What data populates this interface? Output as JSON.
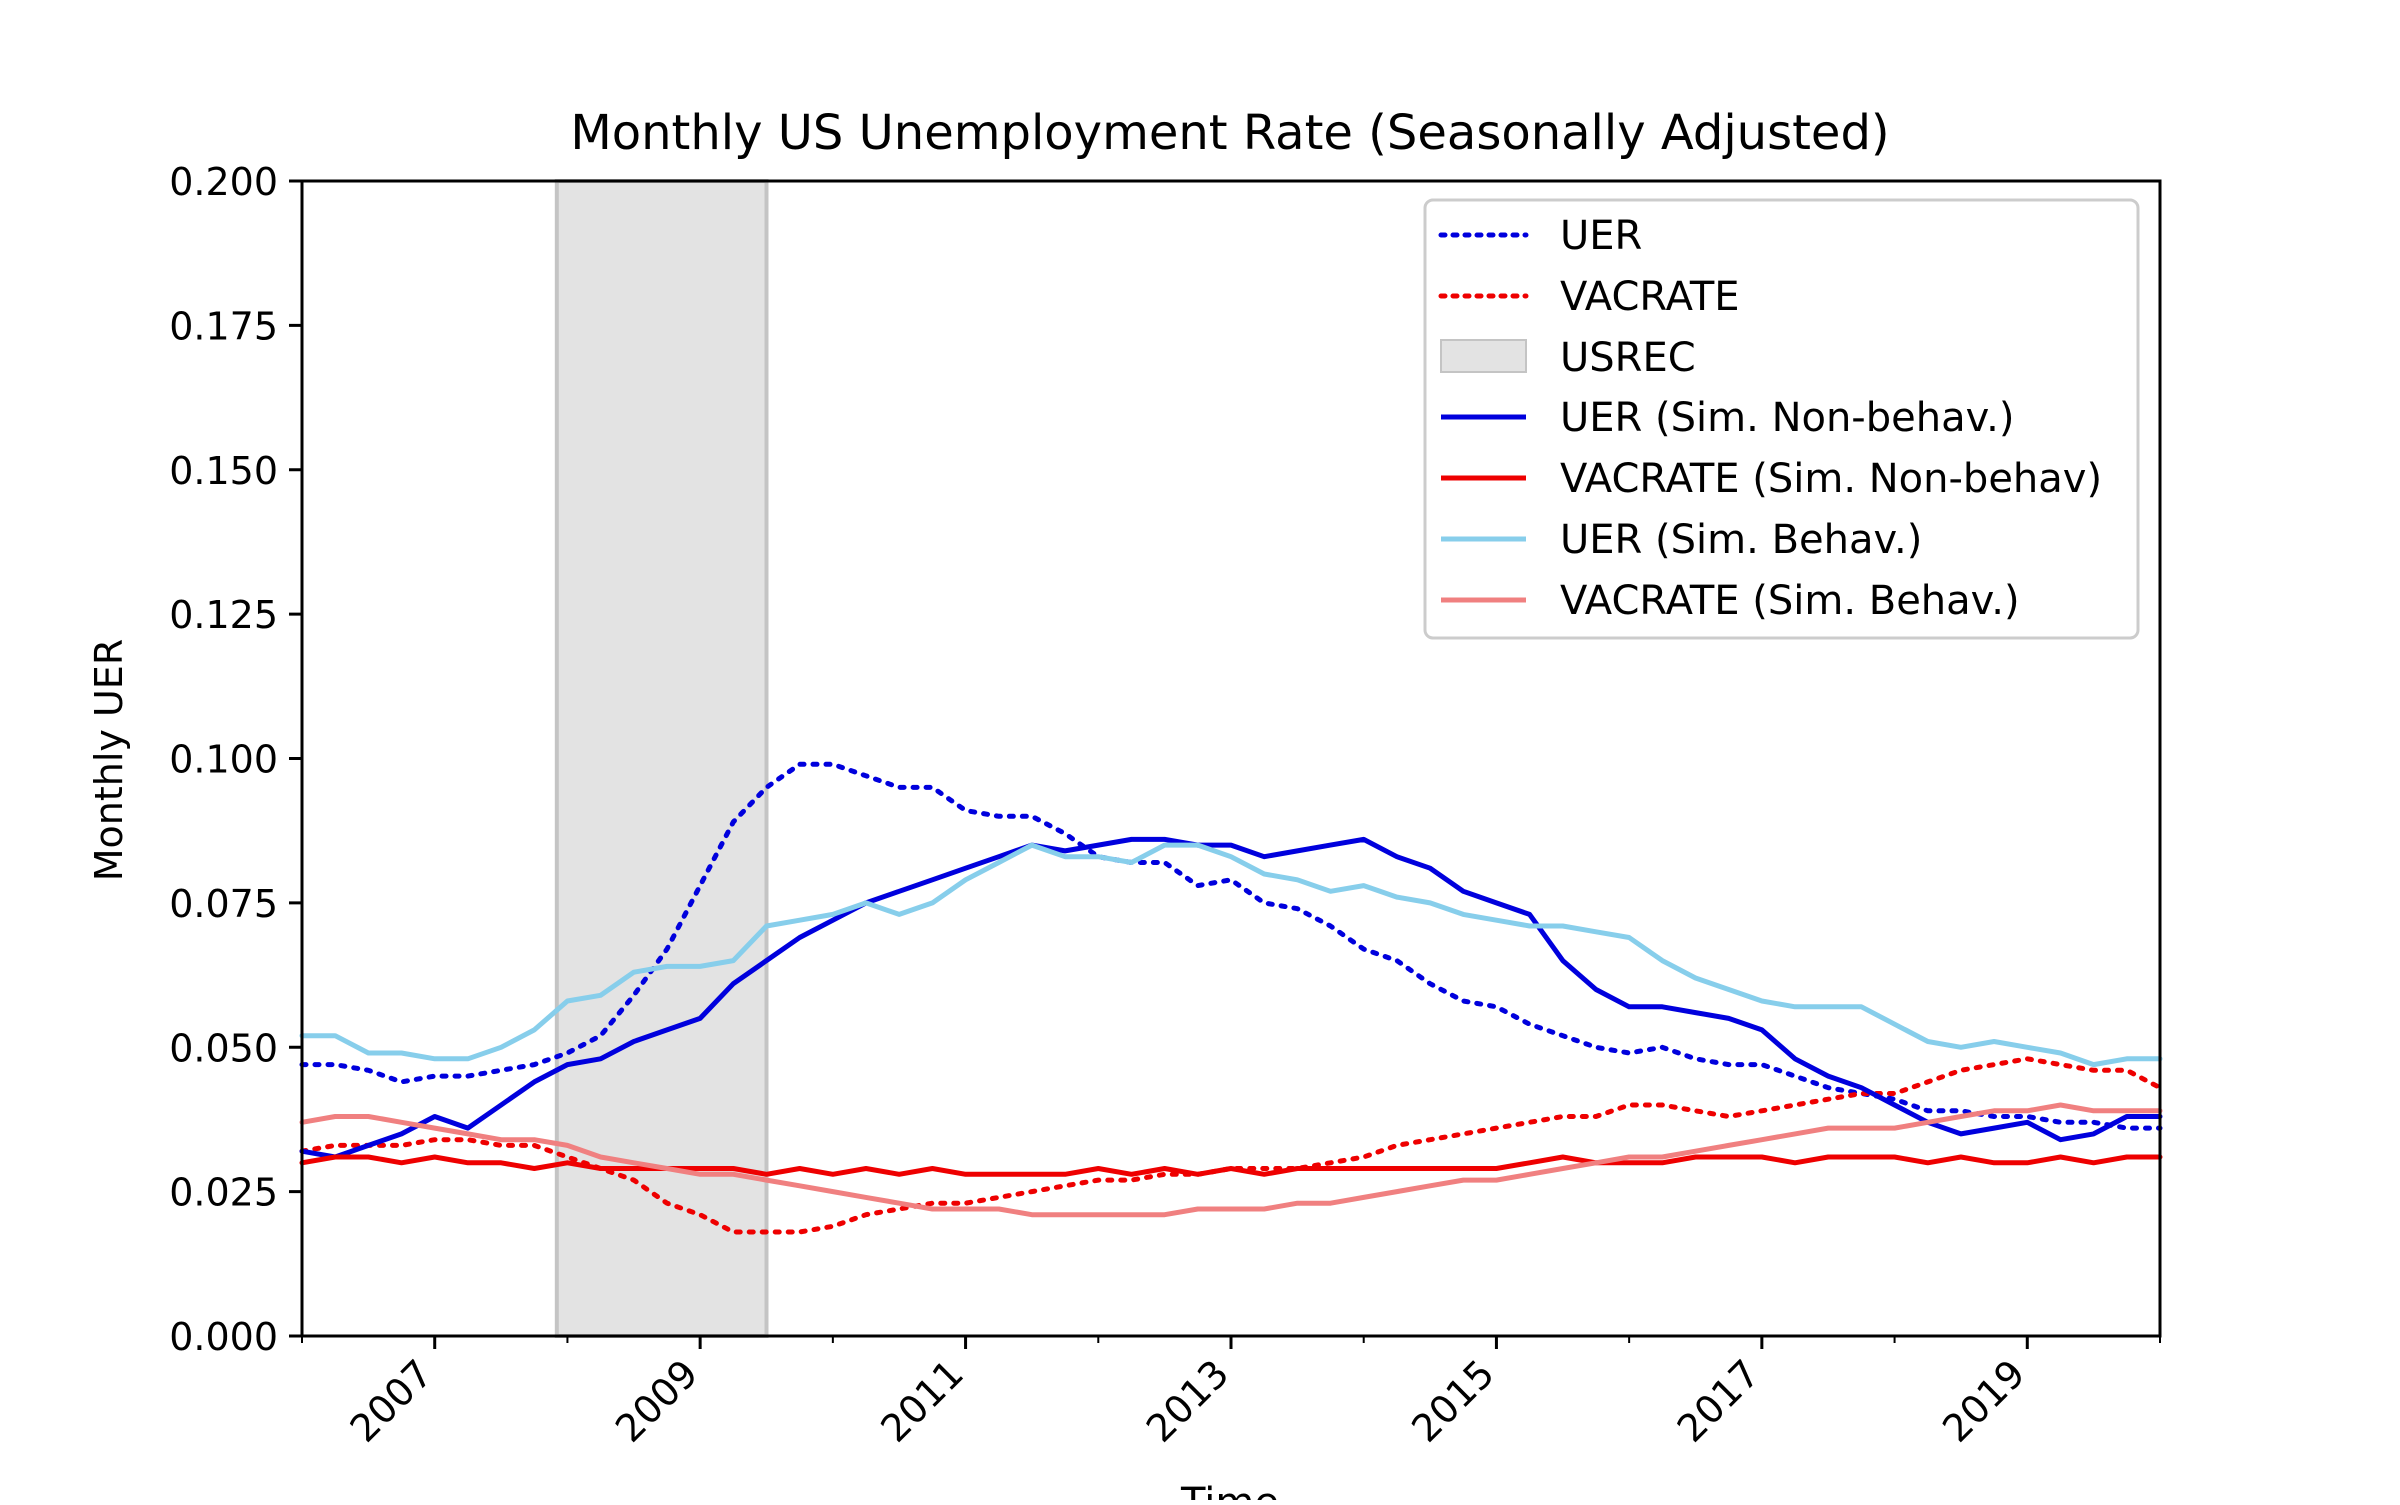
{
  "chart_data": {
    "type": "line",
    "title": "Monthly US Unemployment Rate (Seasonally Adjusted)",
    "xlabel": "Time",
    "ylabel": "Monthly UER",
    "xlim": [
      2006.0,
      2020.0
    ],
    "ylim": [
      0.0,
      0.2
    ],
    "yticks": [
      {
        "value": 0.0,
        "label": "0.000"
      },
      {
        "value": 0.025,
        "label": "0.025"
      },
      {
        "value": 0.05,
        "label": "0.050"
      },
      {
        "value": 0.075,
        "label": "0.075"
      },
      {
        "value": 0.1,
        "label": "0.100"
      },
      {
        "value": 0.125,
        "label": "0.125"
      },
      {
        "value": 0.15,
        "label": "0.150"
      },
      {
        "value": 0.175,
        "label": "0.175"
      },
      {
        "value": 0.2,
        "label": "0.200"
      }
    ],
    "xticks": [
      {
        "value": 2007,
        "label": "2007"
      },
      {
        "value": 2009,
        "label": "2009"
      },
      {
        "value": 2011,
        "label": "2011"
      },
      {
        "value": 2013,
        "label": "2013"
      },
      {
        "value": 2015,
        "label": "2015"
      },
      {
        "value": 2017,
        "label": "2017"
      },
      {
        "value": 2019,
        "label": "2019"
      }
    ],
    "minor_xticks": [
      2006,
      2008,
      2010,
      2012,
      2014,
      2016,
      2018,
      2020
    ],
    "grid": false,
    "legend_position": "top-right",
    "recession_band": {
      "name": "USREC",
      "start": 2007.92,
      "end": 2009.5,
      "color": "#e3e3e3",
      "edge_color": "#c4c4c4"
    },
    "series": [
      {
        "name": "UER",
        "style": "dotted",
        "color": "#0000dd",
        "x": [
          2006.0,
          2006.25,
          2006.5,
          2006.75,
          2007.0,
          2007.25,
          2007.5,
          2007.75,
          2008.0,
          2008.25,
          2008.5,
          2008.75,
          2009.0,
          2009.25,
          2009.5,
          2009.75,
          2010.0,
          2010.25,
          2010.5,
          2010.75,
          2011.0,
          2011.25,
          2011.5,
          2011.75,
          2012.0,
          2012.25,
          2012.5,
          2012.75,
          2013.0,
          2013.25,
          2013.5,
          2013.75,
          2014.0,
          2014.25,
          2014.5,
          2014.75,
          2015.0,
          2015.25,
          2015.5,
          2015.75,
          2016.0,
          2016.25,
          2016.5,
          2016.75,
          2017.0,
          2017.25,
          2017.5,
          2017.75,
          2018.0,
          2018.25,
          2018.5,
          2018.75,
          2019.0,
          2019.25,
          2019.5,
          2019.75,
          2020.0
        ],
        "y": [
          0.047,
          0.047,
          0.046,
          0.044,
          0.045,
          0.045,
          0.046,
          0.047,
          0.049,
          0.052,
          0.059,
          0.067,
          0.078,
          0.089,
          0.095,
          0.099,
          0.099,
          0.097,
          0.095,
          0.095,
          0.091,
          0.09,
          0.09,
          0.087,
          0.083,
          0.082,
          0.082,
          0.078,
          0.079,
          0.075,
          0.074,
          0.071,
          0.067,
          0.065,
          0.061,
          0.058,
          0.057,
          0.054,
          0.052,
          0.05,
          0.049,
          0.05,
          0.048,
          0.047,
          0.047,
          0.045,
          0.043,
          0.042,
          0.041,
          0.039,
          0.039,
          0.038,
          0.038,
          0.037,
          0.037,
          0.036,
          0.036
        ]
      },
      {
        "name": "VACRATE",
        "style": "dotted",
        "color": "#ee0000",
        "x": [
          2006.0,
          2006.25,
          2006.5,
          2006.75,
          2007.0,
          2007.25,
          2007.5,
          2007.75,
          2008.0,
          2008.25,
          2008.5,
          2008.75,
          2009.0,
          2009.25,
          2009.5,
          2009.75,
          2010.0,
          2010.25,
          2010.5,
          2010.75,
          2011.0,
          2011.25,
          2011.5,
          2011.75,
          2012.0,
          2012.25,
          2012.5,
          2012.75,
          2013.0,
          2013.25,
          2013.5,
          2013.75,
          2014.0,
          2014.25,
          2014.5,
          2014.75,
          2015.0,
          2015.25,
          2015.5,
          2015.75,
          2016.0,
          2016.25,
          2016.5,
          2016.75,
          2017.0,
          2017.25,
          2017.5,
          2017.75,
          2018.0,
          2018.25,
          2018.5,
          2018.75,
          2019.0,
          2019.25,
          2019.5,
          2019.75,
          2020.0
        ],
        "y": [
          0.032,
          0.033,
          0.033,
          0.033,
          0.034,
          0.034,
          0.033,
          0.033,
          0.031,
          0.029,
          0.027,
          0.023,
          0.021,
          0.018,
          0.018,
          0.018,
          0.019,
          0.021,
          0.022,
          0.023,
          0.023,
          0.024,
          0.025,
          0.026,
          0.027,
          0.027,
          0.028,
          0.028,
          0.029,
          0.029,
          0.029,
          0.03,
          0.031,
          0.033,
          0.034,
          0.035,
          0.036,
          0.037,
          0.038,
          0.038,
          0.04,
          0.04,
          0.039,
          0.038,
          0.039,
          0.04,
          0.041,
          0.042,
          0.042,
          0.044,
          0.046,
          0.047,
          0.048,
          0.047,
          0.046,
          0.046,
          0.043
        ]
      },
      {
        "name": "UER (Sim. Non-behav.)",
        "style": "solid",
        "color": "#0000dd",
        "x": [
          2006.0,
          2006.25,
          2006.5,
          2006.75,
          2007.0,
          2007.25,
          2007.5,
          2007.75,
          2008.0,
          2008.25,
          2008.5,
          2008.75,
          2009.0,
          2009.25,
          2009.5,
          2009.75,
          2010.0,
          2010.25,
          2010.5,
          2010.75,
          2011.0,
          2011.25,
          2011.5,
          2011.75,
          2012.0,
          2012.25,
          2012.5,
          2012.75,
          2013.0,
          2013.25,
          2013.5,
          2013.75,
          2014.0,
          2014.25,
          2014.5,
          2014.75,
          2015.0,
          2015.25,
          2015.5,
          2015.75,
          2016.0,
          2016.25,
          2016.5,
          2016.75,
          2017.0,
          2017.25,
          2017.5,
          2017.75,
          2018.0,
          2018.25,
          2018.5,
          2018.75,
          2019.0,
          2019.25,
          2019.5,
          2019.75,
          2020.0
        ],
        "y": [
          0.032,
          0.031,
          0.033,
          0.035,
          0.038,
          0.036,
          0.04,
          0.044,
          0.047,
          0.048,
          0.051,
          0.053,
          0.055,
          0.061,
          0.065,
          0.069,
          0.072,
          0.075,
          0.077,
          0.079,
          0.081,
          0.083,
          0.085,
          0.084,
          0.085,
          0.086,
          0.086,
          0.085,
          0.085,
          0.083,
          0.084,
          0.085,
          0.086,
          0.083,
          0.081,
          0.077,
          0.075,
          0.073,
          0.065,
          0.06,
          0.057,
          0.057,
          0.056,
          0.055,
          0.053,
          0.048,
          0.045,
          0.043,
          0.04,
          0.037,
          0.035,
          0.036,
          0.037,
          0.034,
          0.035,
          0.038,
          0.038
        ]
      },
      {
        "name": "VACRATE (Sim. Non-behav)",
        "style": "solid",
        "color": "#ee0000",
        "x": [
          2006.0,
          2006.25,
          2006.5,
          2006.75,
          2007.0,
          2007.25,
          2007.5,
          2007.75,
          2008.0,
          2008.25,
          2008.5,
          2008.75,
          2009.0,
          2009.25,
          2009.5,
          2009.75,
          2010.0,
          2010.25,
          2010.5,
          2010.75,
          2011.0,
          2011.25,
          2011.5,
          2011.75,
          2012.0,
          2012.25,
          2012.5,
          2012.75,
          2013.0,
          2013.25,
          2013.5,
          2013.75,
          2014.0,
          2014.25,
          2014.5,
          2014.75,
          2015.0,
          2015.25,
          2015.5,
          2015.75,
          2016.0,
          2016.25,
          2016.5,
          2016.75,
          2017.0,
          2017.25,
          2017.5,
          2017.75,
          2018.0,
          2018.25,
          2018.5,
          2018.75,
          2019.0,
          2019.25,
          2019.5,
          2019.75,
          2020.0
        ],
        "y": [
          0.03,
          0.031,
          0.031,
          0.03,
          0.031,
          0.03,
          0.03,
          0.029,
          0.03,
          0.029,
          0.029,
          0.029,
          0.029,
          0.029,
          0.028,
          0.029,
          0.028,
          0.029,
          0.028,
          0.029,
          0.028,
          0.028,
          0.028,
          0.028,
          0.029,
          0.028,
          0.029,
          0.028,
          0.029,
          0.028,
          0.029,
          0.029,
          0.029,
          0.029,
          0.029,
          0.029,
          0.029,
          0.03,
          0.031,
          0.03,
          0.03,
          0.03,
          0.031,
          0.031,
          0.031,
          0.03,
          0.031,
          0.031,
          0.031,
          0.03,
          0.031,
          0.03,
          0.03,
          0.031,
          0.03,
          0.031,
          0.031
        ]
      },
      {
        "name": "UER (Sim. Behav.)",
        "style": "solid",
        "color": "#87ceeb",
        "x": [
          2006.0,
          2006.25,
          2006.5,
          2006.75,
          2007.0,
          2007.25,
          2007.5,
          2007.75,
          2008.0,
          2008.25,
          2008.5,
          2008.75,
          2009.0,
          2009.25,
          2009.5,
          2009.75,
          2010.0,
          2010.25,
          2010.5,
          2010.75,
          2011.0,
          2011.25,
          2011.5,
          2011.75,
          2012.0,
          2012.25,
          2012.5,
          2012.75,
          2013.0,
          2013.25,
          2013.5,
          2013.75,
          2014.0,
          2014.25,
          2014.5,
          2014.75,
          2015.0,
          2015.25,
          2015.5,
          2015.75,
          2016.0,
          2016.25,
          2016.5,
          2016.75,
          2017.0,
          2017.25,
          2017.5,
          2017.75,
          2018.0,
          2018.25,
          2018.5,
          2018.75,
          2019.0,
          2019.25,
          2019.5,
          2019.75,
          2020.0
        ],
        "y": [
          0.052,
          0.052,
          0.049,
          0.049,
          0.048,
          0.048,
          0.05,
          0.053,
          0.058,
          0.059,
          0.063,
          0.064,
          0.064,
          0.065,
          0.071,
          0.072,
          0.073,
          0.075,
          0.073,
          0.075,
          0.079,
          0.082,
          0.085,
          0.083,
          0.083,
          0.082,
          0.085,
          0.085,
          0.083,
          0.08,
          0.079,
          0.077,
          0.078,
          0.076,
          0.075,
          0.073,
          0.072,
          0.071,
          0.071,
          0.07,
          0.069,
          0.065,
          0.062,
          0.06,
          0.058,
          0.057,
          0.057,
          0.057,
          0.054,
          0.051,
          0.05,
          0.051,
          0.05,
          0.049,
          0.047,
          0.048,
          0.048
        ]
      },
      {
        "name": "VACRATE (Sim. Behav.)",
        "style": "solid",
        "color": "#f08080",
        "x": [
          2006.0,
          2006.25,
          2006.5,
          2006.75,
          2007.0,
          2007.25,
          2007.5,
          2007.75,
          2008.0,
          2008.25,
          2008.5,
          2008.75,
          2009.0,
          2009.25,
          2009.5,
          2009.75,
          2010.0,
          2010.25,
          2010.5,
          2010.75,
          2011.0,
          2011.25,
          2011.5,
          2011.75,
          2012.0,
          2012.25,
          2012.5,
          2012.75,
          2013.0,
          2013.25,
          2013.5,
          2013.75,
          2014.0,
          2014.25,
          2014.5,
          2014.75,
          2015.0,
          2015.25,
          2015.5,
          2015.75,
          2016.0,
          2016.25,
          2016.5,
          2016.75,
          2017.0,
          2017.25,
          2017.5,
          2017.75,
          2018.0,
          2018.25,
          2018.5,
          2018.75,
          2019.0,
          2019.25,
          2019.5,
          2019.75,
          2020.0
        ],
        "y": [
          0.037,
          0.038,
          0.038,
          0.037,
          0.036,
          0.035,
          0.034,
          0.034,
          0.033,
          0.031,
          0.03,
          0.029,
          0.028,
          0.028,
          0.027,
          0.026,
          0.025,
          0.024,
          0.023,
          0.022,
          0.022,
          0.022,
          0.021,
          0.021,
          0.021,
          0.021,
          0.021,
          0.022,
          0.022,
          0.022,
          0.023,
          0.023,
          0.024,
          0.025,
          0.026,
          0.027,
          0.027,
          0.028,
          0.029,
          0.03,
          0.031,
          0.031,
          0.032,
          0.033,
          0.034,
          0.035,
          0.036,
          0.036,
          0.036,
          0.037,
          0.038,
          0.039,
          0.039,
          0.04,
          0.039,
          0.039,
          0.039
        ]
      }
    ]
  }
}
